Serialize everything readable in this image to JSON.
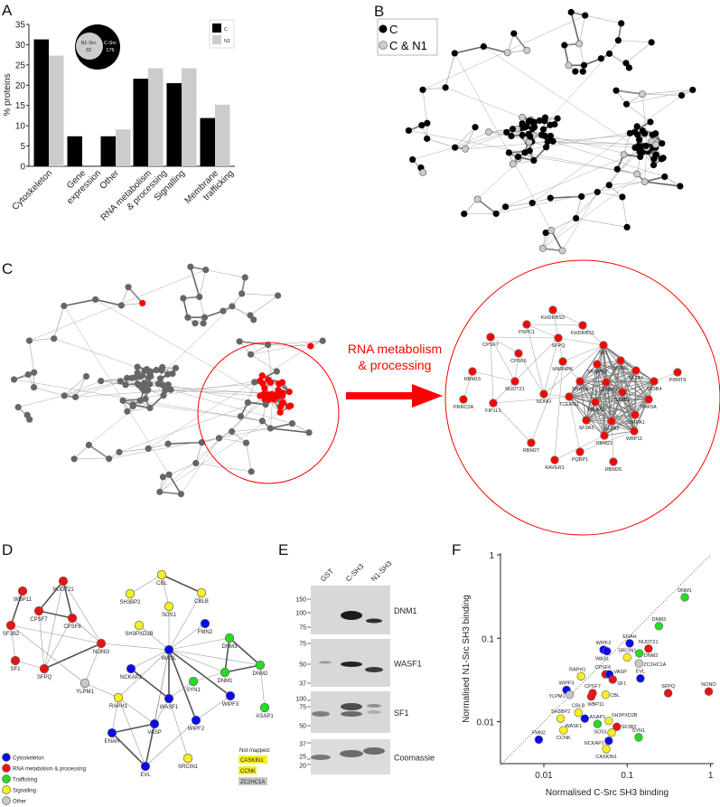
{
  "panel_letters": {
    "a": "A",
    "b": "B",
    "c": "C",
    "d": "D",
    "e": "E",
    "f": "F"
  },
  "colors": {
    "cytoskeleton": "#0a0aee",
    "rna": "#ee1111",
    "trafficking": "#22dd22",
    "signalling": "#f5ef20",
    "other": "#c8c8c8",
    "c_only": "#000000",
    "c_and_n1": "#cccccc",
    "network_node": "#666666",
    "highlight": "#ff0000"
  },
  "panel_a": {
    "venn": {
      "n1_label": "N1-Src",
      "n1_count": "33",
      "c_label": "C-Src",
      "c_count": "176"
    },
    "legend": [
      "C",
      "N1"
    ]
  },
  "chart_data": [
    {
      "type": "bar",
      "title": "",
      "xlabel": "",
      "ylabel": "% proteins",
      "ylim": [
        0,
        35
      ],
      "yticks": [
        0,
        5,
        10,
        15,
        20,
        25,
        30,
        35
      ],
      "categories": [
        "Cytoskeleton",
        "Gene expression",
        "Other",
        "RNA metabolism & processing",
        "Signalling",
        "Membrane trafficking"
      ],
      "series": [
        {
          "name": "C",
          "color": "#000000",
          "values": [
            31.3,
            7.4,
            7.4,
            21.6,
            20.5,
            11.9
          ]
        },
        {
          "name": "N1",
          "color": "#cccccc",
          "values": [
            27.3,
            0,
            9.1,
            24.2,
            24.2,
            15.2
          ]
        }
      ],
      "legend": "top-right",
      "grid": false
    },
    {
      "type": "scatter",
      "title": "",
      "xlabel": "Normalised C-Src SH3 binding",
      "ylabel": "Normalised N1-Src SH3 binding",
      "xscale": "log",
      "yscale": "log",
      "xlim": [
        0.003,
        1
      ],
      "ylim": [
        0.003,
        1
      ],
      "xticks": [
        "0.01",
        "0.1",
        "1"
      ],
      "yticks": [
        "0.01",
        "0.1",
        "1"
      ],
      "reference_line": "y = x (dotted)",
      "points": [
        {
          "label": "DNM1",
          "x": 0.49,
          "y": 0.31,
          "category": "trafficking"
        },
        {
          "label": "DNM3",
          "x": 0.24,
          "y": 0.14,
          "category": "trafficking"
        },
        {
          "label": "ENAH",
          "x": 0.107,
          "y": 0.087,
          "category": "cytoskeleton"
        },
        {
          "label": "NUDT21",
          "x": 0.18,
          "y": 0.075,
          "category": "rna"
        },
        {
          "label": "WIPF2",
          "x": 0.052,
          "y": 0.073,
          "category": "cytoskeleton"
        },
        {
          "label": "WASL",
          "x": 0.057,
          "y": 0.07,
          "category": "cytoskeleton"
        },
        {
          "label": "SRCIN1",
          "x": 0.1,
          "y": 0.059,
          "category": "signalling"
        },
        {
          "label": "DNM2",
          "x": 0.14,
          "y": 0.066,
          "category": "trafficking"
        },
        {
          "label": "ZC2HC1A",
          "x": 0.138,
          "y": 0.05,
          "category": "other"
        },
        {
          "label": "RAPH1",
          "x": 0.028,
          "y": 0.035,
          "category": "signalling"
        },
        {
          "label": "CPSF6",
          "x": 0.055,
          "y": 0.037,
          "category": "rna"
        },
        {
          "label": "VASP",
          "x": 0.061,
          "y": 0.037,
          "category": "cytoskeleton"
        },
        {
          "label": "SF1",
          "x": 0.067,
          "y": 0.032,
          "category": "rna"
        },
        {
          "label": "EVL",
          "x": 0.144,
          "y": 0.033,
          "category": "cytoskeleton"
        },
        {
          "label": "SFPQ",
          "x": 0.31,
          "y": 0.022,
          "category": "rna"
        },
        {
          "label": "NONO",
          "x": 0.95,
          "y": 0.023,
          "category": "rna"
        },
        {
          "label": "WIPF3",
          "x": 0.0187,
          "y": 0.024,
          "category": "cytoskeleton"
        },
        {
          "label": "YLPM1",
          "x": 0.0204,
          "y": 0.021,
          "category": "other"
        },
        {
          "label": "CPSF7",
          "x": 0.0385,
          "y": 0.022,
          "category": "rna"
        },
        {
          "label": "WBP11",
          "x": 0.037,
          "y": 0.02,
          "category": "rna"
        },
        {
          "label": "CBL",
          "x": 0.055,
          "y": 0.021,
          "category": "signalling"
        },
        {
          "label": "CBLB",
          "x": 0.026,
          "y": 0.0128,
          "category": "signalling"
        },
        {
          "label": "SH3BP2",
          "x": 0.0159,
          "y": 0.0109,
          "category": "signalling"
        },
        {
          "label": "ASAP1",
          "x": 0.044,
          "y": 0.0094,
          "category": "trafficking"
        },
        {
          "label": "WASF1",
          "x": 0.031,
          "y": 0.0109,
          "category": "cytoskeleton"
        },
        {
          "label": "SH3PXD2B",
          "x": 0.06,
          "y": 0.0102,
          "category": "signalling"
        },
        {
          "label": "SF3B2",
          "x": 0.075,
          "y": 0.0087,
          "category": "rna"
        },
        {
          "label": "SOS1",
          "x": 0.065,
          "y": 0.0074,
          "category": "signalling"
        },
        {
          "label": "SYN1",
          "x": 0.137,
          "y": 0.0065,
          "category": "trafficking"
        },
        {
          "label": "CCNK",
          "x": 0.0172,
          "y": 0.0079,
          "category": "signalling"
        },
        {
          "label": "FMN2",
          "x": 0.0087,
          "y": 0.0061,
          "category": "cytoskeleton"
        },
        {
          "label": "NCKAP1",
          "x": 0.06,
          "y": 0.0059,
          "category": "cytoskeleton"
        },
        {
          "label": "CASKIN1",
          "x": 0.056,
          "y": 0.0047,
          "category": "signalling"
        }
      ]
    }
  ],
  "panel_b": {
    "legend": [
      "C",
      "C & N1"
    ]
  },
  "panel_c": {
    "callout": [
      "RNA metabolism",
      "& processing"
    ],
    "nodes": [
      "KHDRBS3",
      "KHDRBS1",
      "PSPC1",
      "SFPQ",
      "CPSF7",
      "SF1",
      "CPSF6",
      "HNRNPK",
      "SF3B1",
      "SNRPB2",
      "SF3A1",
      "RBM15",
      "PRMT9",
      "NUDT21",
      "SNRPA",
      "SF3B3",
      "SF3B4",
      "NONO",
      "SF3B2",
      "TCERG1",
      "PHF5A",
      "PRRC2A",
      "FIP1L1",
      "SRRM2",
      "SNRPA1",
      "SF3A3",
      "SF3A2",
      "WBP11",
      "RBM22",
      "RBM27",
      "PQBP1",
      "RAVER1",
      "RBM26"
    ]
  },
  "panel_d": {
    "nodes": [
      {
        "name": "NUDT21",
        "category": "rna"
      },
      {
        "name": "WBP11",
        "category": "rna"
      },
      {
        "name": "CPSF7",
        "category": "rna"
      },
      {
        "name": "CPSF6",
        "category": "rna"
      },
      {
        "name": "SF3B2",
        "category": "rna"
      },
      {
        "name": "NONO",
        "category": "rna"
      },
      {
        "name": "SF1",
        "category": "rna"
      },
      {
        "name": "SFPQ",
        "category": "rna"
      },
      {
        "name": "YLPM1",
        "category": "other"
      },
      {
        "name": "CBL",
        "category": "signalling"
      },
      {
        "name": "SH3BP2",
        "category": "signalling"
      },
      {
        "name": "CBLB",
        "category": "signalling"
      },
      {
        "name": "SOS1",
        "category": "signalling"
      },
      {
        "name": "SH3PXD2B",
        "category": "signalling"
      },
      {
        "name": "FMN2",
        "category": "cytoskeleton"
      },
      {
        "name": "WASL",
        "category": "cytoskeleton"
      },
      {
        "name": "DNM3",
        "category": "trafficking"
      },
      {
        "name": "DNM2",
        "category": "trafficking"
      },
      {
        "name": "DNM1",
        "category": "trafficking"
      },
      {
        "name": "NCKAP1",
        "category": "cytoskeleton"
      },
      {
        "name": "SYN1",
        "category": "trafficking"
      },
      {
        "name": "WASF1",
        "category": "cytoskeleton"
      },
      {
        "name": "WIPF3",
        "category": "cytoskeleton"
      },
      {
        "name": "RAPH1",
        "category": "signalling"
      },
      {
        "name": "ASAP1",
        "category": "trafficking"
      },
      {
        "name": "VASP",
        "category": "cytoskeleton"
      },
      {
        "name": "WIPF2",
        "category": "cytoskeleton"
      },
      {
        "name": "ENAH",
        "category": "cytoskeleton"
      },
      {
        "name": "EVL",
        "category": "cytoskeleton"
      },
      {
        "name": "SRCIN1",
        "category": "signalling"
      }
    ],
    "edges": [
      [
        "NUDT21",
        "CPSF7",
        1
      ],
      [
        "NUDT21",
        "CPSF6",
        1
      ],
      [
        "NUDT21",
        "SFPQ",
        0
      ],
      [
        "NUDT21",
        "NONO",
        0
      ],
      [
        "CPSF7",
        "CPSF6",
        1
      ],
      [
        "CPSF7",
        "SFPQ",
        0
      ],
      [
        "CPSF6",
        "SFPQ",
        0
      ],
      [
        "CPSF6",
        "NONO",
        0
      ],
      [
        "WBP11",
        "SF3B2",
        1
      ],
      [
        "SF3B2",
        "SF1",
        0
      ],
      [
        "SF1",
        "SFPQ",
        0
      ],
      [
        "SFPQ",
        "NONO",
        1
      ],
      [
        "SF3B2",
        "NONO",
        0
      ],
      [
        "SF3B2",
        "YLPM1",
        0
      ],
      [
        "NONO",
        "YLPM1",
        0
      ],
      [
        "NONO",
        "WASL",
        0
      ],
      [
        "YLPM1",
        "RAPH1",
        0
      ],
      [
        "CBL",
        "SH3BP2",
        0
      ],
      [
        "CBL",
        "CBLB",
        1
      ],
      [
        "CBL",
        "SOS1",
        0
      ],
      [
        "SOS1",
        "WASL",
        0
      ],
      [
        "CBLB",
        "WASL",
        0
      ],
      [
        "SH3PXD2B",
        "WASL",
        0
      ],
      [
        "FMN2",
        "WASL",
        0
      ],
      [
        "WASL",
        "DNM3",
        0
      ],
      [
        "WASL",
        "DNM2",
        0
      ],
      [
        "WASL",
        "DNM1",
        0
      ],
      [
        "WASL",
        "NCKAP1",
        0
      ],
      [
        "WASL",
        "WASF1",
        1
      ],
      [
        "WASL",
        "WIPF3",
        1
      ],
      [
        "WASL",
        "WIPF2",
        1
      ],
      [
        "WASL",
        "VASP",
        0
      ],
      [
        "WASL",
        "RAPH1",
        0
      ],
      [
        "WASL",
        "EVL",
        0
      ],
      [
        "DNM3",
        "DNM1",
        1
      ],
      [
        "DNM3",
        "DNM2",
        1
      ],
      [
        "DNM1",
        "DNM2",
        1
      ],
      [
        "DNM1",
        "SYN1",
        0
      ],
      [
        "DNM2",
        "ASAP1",
        0
      ],
      [
        "NCKAP1",
        "WASF1",
        1
      ],
      [
        "WASF1",
        "SYN1",
        0
      ],
      [
        "WASF1",
        "VASP",
        0
      ],
      [
        "WASF1",
        "SRCIN1",
        0
      ],
      [
        "WIPF3",
        "WIPF2",
        0
      ],
      [
        "WIPF2",
        "EVL",
        0
      ],
      [
        "RAPH1",
        "ENAH",
        0
      ],
      [
        "RAPH1",
        "VASP",
        0
      ],
      [
        "RAPH1",
        "EVL",
        0
      ],
      [
        "VASP",
        "ENAH",
        1
      ],
      [
        "VASP",
        "EVL",
        1
      ],
      [
        "ENAH",
        "EVL",
        1
      ]
    ],
    "legend": [
      {
        "label": "Cytoskeleton",
        "category": "cytoskeleton"
      },
      {
        "label": "RNA metabolism & processing",
        "category": "rna"
      },
      {
        "label": "Trafficking",
        "category": "trafficking"
      },
      {
        "label": "Signalling",
        "category": "signalling"
      },
      {
        "label": "Other",
        "category": "other"
      }
    ],
    "not_mapped": {
      "title": "Not mapped:",
      "items": [
        {
          "name": "CASKIN1",
          "category": "signalling"
        },
        {
          "name": "CCNK",
          "category": "signalling"
        },
        {
          "name": "ZC2HC1A",
          "category": "other"
        }
      ]
    }
  },
  "panel_e": {
    "lanes": [
      "GST",
      "C-SH3",
      "N1-SH3"
    ],
    "blots": [
      {
        "label": "DNM1",
        "markers": [
          "150",
          "100",
          "75"
        ]
      },
      {
        "label": "WASF1",
        "markers": [
          "75",
          "50",
          "37"
        ]
      },
      {
        "label": "SF1",
        "markers": [
          "100",
          "75",
          "50"
        ]
      },
      {
        "label": "Coomassie",
        "markers": [
          "37",
          "25",
          "20"
        ]
      }
    ]
  }
}
